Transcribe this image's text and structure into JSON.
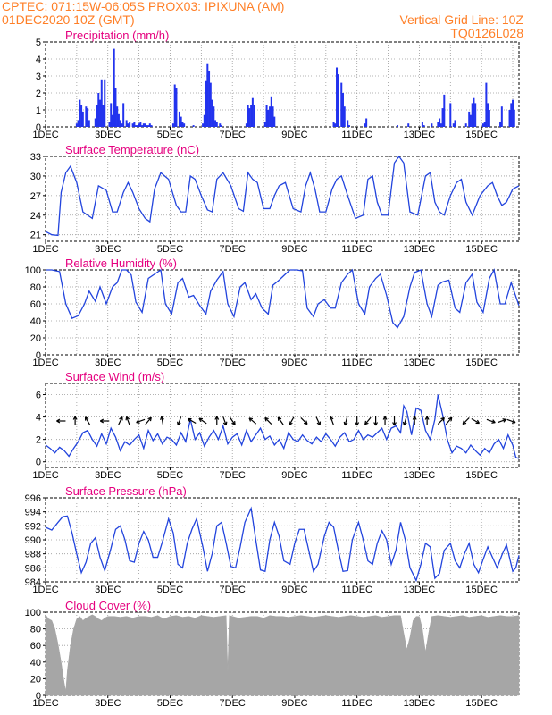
{
  "header": {
    "line1_left": "CPTEC:   071:15W-06:05S   PROX03: IPIXUNA (AM)",
    "line2_left": "01DEC2020 10Z (GMT)",
    "line2_right": "Vertical Grid Line: 10Z",
    "line3_right": "TQ0126L028"
  },
  "colors": {
    "header": "#ff7f27",
    "title": "#e5007f",
    "line": "#2244dd",
    "bar": "#2233ee",
    "cloud": "#a6a6a6",
    "arrow": "#000000"
  },
  "x_tick_labels": [
    "1DEC",
    "3DEC",
    "5DEC",
    "7DEC",
    "9DEC",
    "11DEC",
    "13DEC",
    "15DEC"
  ],
  "chart_data": [
    {
      "type": "bar",
      "title": "Precipitation (mm/h)",
      "x_unit": "days since 01DEC2020 10Z",
      "xlim": [
        0,
        15.2
      ],
      "ylim": [
        0,
        5
      ],
      "y_ticks": [
        0,
        1,
        2,
        3,
        4,
        5
      ],
      "x": [
        1.0,
        1.05,
        1.1,
        1.15,
        1.2,
        1.3,
        1.35,
        1.4,
        1.6,
        1.65,
        1.7,
        1.75,
        1.8,
        1.85,
        1.9,
        2.05,
        2.1,
        2.15,
        2.2,
        2.25,
        2.3,
        2.35,
        2.4,
        2.45,
        2.5,
        2.6,
        2.65,
        2.7,
        2.8,
        2.85,
        2.9,
        2.95,
        3.0,
        3.05,
        3.1,
        3.15,
        3.2,
        3.25,
        3.3,
        3.35,
        3.4,
        4.1,
        4.15,
        4.2,
        4.3,
        4.35,
        4.4,
        4.45,
        4.75,
        5.05,
        5.1,
        5.15,
        5.2,
        5.25,
        5.3,
        5.35,
        5.4,
        5.45,
        5.5,
        5.6,
        5.65,
        6.45,
        6.5,
        6.55,
        6.6,
        6.65,
        6.7,
        7.05,
        7.1,
        7.15,
        7.2,
        7.25,
        7.3,
        7.35,
        9.25,
        9.3,
        9.35,
        9.4,
        9.5,
        9.55,
        9.6,
        9.7,
        9.75,
        10.25,
        10.3,
        11.3,
        11.65,
        12.1,
        12.15,
        12.4,
        12.6,
        12.65,
        12.7,
        12.75,
        12.8,
        13.0,
        13.1,
        13.15,
        13.5,
        13.6,
        13.65,
        13.7,
        13.75,
        13.8,
        14.05,
        14.1,
        14.15,
        14.2,
        14.25,
        14.6,
        14.65,
        14.9,
        14.95,
        15.0,
        15.05
      ],
      "values": [
        0.2,
        0.4,
        1.6,
        1.3,
        0.9,
        1.2,
        1.1,
        0.4,
        0.5,
        1.3,
        2.0,
        1.6,
        2.8,
        1.3,
        2.8,
        0.3,
        1.4,
        0.7,
        4.6,
        2.3,
        1.2,
        0.8,
        0.4,
        0.2,
        1.4,
        0.4,
        0.2,
        0.3,
        0.2,
        0.3,
        0.1,
        0.1,
        0.2,
        0.3,
        0.1,
        0.2,
        0.2,
        0.1,
        0.1,
        0.2,
        0.1,
        0.2,
        2.5,
        2.3,
        0.9,
        0.6,
        0.3,
        0.2,
        0.1,
        0.2,
        0.7,
        2.7,
        3.7,
        3.3,
        2.6,
        1.6,
        1.2,
        0.4,
        0.3,
        0.2,
        0.1,
        0.2,
        1.3,
        1.1,
        1.3,
        1.7,
        1.3,
        0.3,
        1.3,
        1.0,
        1.2,
        1.8,
        1.2,
        0.6,
        0.3,
        0.2,
        3.5,
        3.1,
        2.6,
        2.0,
        1.2,
        0.4,
        0.1,
        0.2,
        0.5,
        0.1,
        0.2,
        0.3,
        0.1,
        0.2,
        0.3,
        0.5,
        0.2,
        1.1,
        1.9,
        1.4,
        0.2,
        0.4,
        0.2,
        0.9,
        0.7,
        1.4,
        1.7,
        1.4,
        0.2,
        0.3,
        2.6,
        1.4,
        1.0,
        0.3,
        1.2,
        1.0,
        1.4,
        1.6,
        1.0
      ]
    },
    {
      "type": "line",
      "title": "Surface Temperature (nC)",
      "x_unit": "days since 01DEC2020 10Z",
      "xlim": [
        0,
        15.2
      ],
      "ylim": [
        20,
        33
      ],
      "y_ticks": [
        21,
        24,
        27,
        30,
        33
      ],
      "x": [
        0,
        0.2,
        0.4,
        0.5,
        0.65,
        0.8,
        1.0,
        1.2,
        1.35,
        1.5,
        1.7,
        1.95,
        2.15,
        2.3,
        2.5,
        2.65,
        2.8,
        3.0,
        3.2,
        3.35,
        3.5,
        3.7,
        3.95,
        4.2,
        4.35,
        4.5,
        4.65,
        4.8,
        5.0,
        5.2,
        5.35,
        5.5,
        5.7,
        5.95,
        6.2,
        6.35,
        6.5,
        6.65,
        6.8,
        7.0,
        7.2,
        7.35,
        7.5,
        7.7,
        7.95,
        8.2,
        8.35,
        8.5,
        8.65,
        8.8,
        9.0,
        9.2,
        9.35,
        9.5,
        9.7,
        9.95,
        10.2,
        10.35,
        10.5,
        10.65,
        10.8,
        11.0,
        11.2,
        11.35,
        11.5,
        11.7,
        11.95,
        12.2,
        12.35,
        12.5,
        12.65,
        12.8,
        13.0,
        13.2,
        13.35,
        13.5,
        13.7,
        13.95,
        14.2,
        14.35,
        14.5,
        14.65,
        14.8,
        15.0,
        15.2
      ],
      "values": [
        21.5,
        21.0,
        20.9,
        27.5,
        30.5,
        31.5,
        29.0,
        24.5,
        24.0,
        23.5,
        28.5,
        27.8,
        24.5,
        24.5,
        27.5,
        29.0,
        27.5,
        25.0,
        23.5,
        23.0,
        28.0,
        30.5,
        29.5,
        25.5,
        24.5,
        24.5,
        30.0,
        29.5,
        27.0,
        24.8,
        24.5,
        29.5,
        30.5,
        28.5,
        25.0,
        24.6,
        30.5,
        29.5,
        29.0,
        25.0,
        25.0,
        27.0,
        28.5,
        29.0,
        25.0,
        24.5,
        28.5,
        30.5,
        28.0,
        24.5,
        24.5,
        28.0,
        29.5,
        30.0,
        27.0,
        23.5,
        24.0,
        29.5,
        30.0,
        26.0,
        24.0,
        24.0,
        32.0,
        33.0,
        32.0,
        24.5,
        24.0,
        30.0,
        30.5,
        26.0,
        24.5,
        24.0,
        27.0,
        29.0,
        29.5,
        26.0,
        24.0,
        27.0,
        28.5,
        29.0,
        27.0,
        25.5,
        26.0,
        28.0,
        28.5
      ]
    },
    {
      "type": "line",
      "title": "Relative Humidity (%)",
      "x_unit": "days since 01DEC2020 10Z",
      "xlim": [
        0,
        15.2
      ],
      "ylim": [
        0,
        100
      ],
      "y_ticks": [
        0,
        20,
        40,
        60,
        80,
        100
      ],
      "x": [
        0,
        0.2,
        0.45,
        0.65,
        0.85,
        1.05,
        1.25,
        1.4,
        1.6,
        1.75,
        1.95,
        2.15,
        2.3,
        2.45,
        2.6,
        2.75,
        2.9,
        3.1,
        3.3,
        3.5,
        3.7,
        3.85,
        4.05,
        4.25,
        4.4,
        4.6,
        4.75,
        4.95,
        5.15,
        5.3,
        5.5,
        5.7,
        5.85,
        6.05,
        6.25,
        6.4,
        6.6,
        6.75,
        6.95,
        7.15,
        7.3,
        7.5,
        7.7,
        7.85,
        8.05,
        8.25,
        8.4,
        8.6,
        8.75,
        8.95,
        9.15,
        9.3,
        9.5,
        9.7,
        9.85,
        10.05,
        10.25,
        10.4,
        10.6,
        10.75,
        10.95,
        11.15,
        11.3,
        11.5,
        11.7,
        11.85,
        12.05,
        12.25,
        12.4,
        12.6,
        12.75,
        12.95,
        13.15,
        13.3,
        13.5,
        13.7,
        13.85,
        14.05,
        14.25,
        14.4,
        14.6,
        14.75,
        14.95,
        15.2
      ],
      "values": [
        100,
        100,
        98,
        60,
        43,
        46,
        60,
        75,
        63,
        80,
        60,
        80,
        85,
        100,
        100,
        94,
        62,
        50,
        90,
        95,
        100,
        60,
        48,
        85,
        90,
        68,
        70,
        58,
        48,
        75,
        88,
        98,
        60,
        45,
        80,
        85,
        65,
        72,
        55,
        48,
        82,
        88,
        95,
        100,
        100,
        99,
        55,
        45,
        60,
        65,
        55,
        55,
        85,
        95,
        100,
        60,
        48,
        80,
        90,
        95,
        70,
        38,
        32,
        45,
        80,
        97,
        100,
        60,
        45,
        82,
        86,
        88,
        55,
        50,
        85,
        95,
        62,
        50,
        90,
        100,
        60,
        60,
        85,
        58
      ]
    },
    {
      "type": "line",
      "title": "Surface Wind (m/s)",
      "x_unit": "days since 01DEC2020 10Z",
      "xlim": [
        0,
        15.2
      ],
      "ylim": [
        -0.5,
        7
      ],
      "y_ticks": [
        0,
        2,
        4,
        6
      ],
      "x": [
        0,
        0.15,
        0.3,
        0.45,
        0.6,
        0.75,
        0.9,
        1.05,
        1.2,
        1.35,
        1.5,
        1.65,
        1.8,
        1.95,
        2.1,
        2.25,
        2.4,
        2.55,
        2.7,
        2.85,
        3.0,
        3.15,
        3.3,
        3.45,
        3.6,
        3.75,
        3.9,
        4.05,
        4.2,
        4.35,
        4.5,
        4.65,
        4.8,
        4.95,
        5.1,
        5.25,
        5.4,
        5.55,
        5.7,
        5.85,
        6.0,
        6.15,
        6.3,
        6.45,
        6.6,
        6.75,
        6.9,
        7.05,
        7.2,
        7.35,
        7.5,
        7.65,
        7.8,
        7.95,
        8.1,
        8.25,
        8.4,
        8.55,
        8.7,
        8.85,
        9.0,
        9.15,
        9.3,
        9.45,
        9.6,
        9.75,
        9.9,
        10.05,
        10.2,
        10.35,
        10.5,
        10.65,
        10.8,
        10.95,
        11.1,
        11.25,
        11.4,
        11.5,
        11.6,
        11.75,
        11.9,
        12.05,
        12.2,
        12.35,
        12.5,
        12.6,
        12.75,
        12.9,
        13.05,
        13.2,
        13.35,
        13.5,
        13.65,
        13.8,
        13.95,
        14.1,
        14.25,
        14.4,
        14.55,
        14.7,
        14.85,
        15.0,
        15.1,
        15.2
      ],
      "values": [
        1.5,
        1.2,
        0.8,
        1.3,
        1.0,
        0.5,
        1.2,
        1.8,
        2.6,
        2.8,
        2.0,
        1.4,
        2.5,
        1.6,
        3.0,
        2.2,
        1.0,
        1.8,
        1.5,
        2.0,
        2.4,
        1.2,
        2.8,
        1.9,
        2.5,
        1.6,
        2.2,
        2.0,
        1.5,
        2.6,
        1.8,
        3.8,
        2.0,
        2.6,
        1.4,
        2.2,
        2.8,
        2.0,
        3.2,
        1.6,
        2.2,
        2.5,
        1.5,
        2.8,
        1.8,
        2.4,
        3.0,
        2.0,
        2.3,
        1.5,
        2.0,
        1.2,
        2.6,
        2.0,
        1.8,
        2.4,
        1.9,
        1.6,
        2.2,
        1.8,
        2.5,
        2.0,
        1.4,
        2.2,
        2.6,
        1.8,
        2.0,
        2.8,
        2.0,
        2.4,
        2.2,
        2.6,
        3.0,
        2.0,
        3.0,
        3.2,
        2.6,
        5.0,
        4.5,
        2.4,
        4.8,
        4.6,
        2.8,
        2.0,
        3.8,
        6.0,
        4.2,
        2.0,
        0.8,
        1.4,
        1.2,
        0.8,
        1.5,
        1.0,
        0.6,
        1.2,
        0.8,
        1.6,
        2.0,
        1.2,
        2.4,
        1.5,
        0.4,
        0.3
      ],
      "wind_arrows": {
        "x": [
          0.5,
          0.95,
          1.35,
          1.9,
          2.4,
          2.65,
          3.05,
          3.3,
          3.75,
          4.3,
          4.7,
          5.05,
          5.5,
          5.75,
          6.0,
          6.65,
          7.15,
          7.55,
          7.9,
          8.3,
          8.75,
          9.2,
          9.65,
          10.0,
          10.35,
          10.6,
          10.9,
          11.2,
          11.55,
          11.85,
          12.25,
          12.7,
          12.95,
          13.5,
          13.8,
          14.3,
          14.65,
          14.95
        ],
        "dir_deg": [
          270,
          0,
          330,
          270,
          25,
          340,
          250,
          40,
          350,
          200,
          300,
          305,
          0,
          160,
          145,
          310,
          315,
          325,
          210,
          135,
          155,
          340,
          195,
          180,
          220,
          180,
          0,
          180,
          195,
          0,
          0,
          45,
          40,
          225,
          120,
          110,
          70,
          110
        ]
      }
    },
    {
      "type": "line",
      "title": "Surface Pressure (hPa)",
      "x_unit": "days since 01DEC2020 10Z",
      "xlim": [
        0,
        15.2
      ],
      "ylim": [
        984,
        996
      ],
      "y_ticks": [
        984,
        986,
        988,
        990,
        992,
        994,
        996
      ],
      "x": [
        0,
        0.2,
        0.4,
        0.55,
        0.7,
        0.85,
        1.0,
        1.15,
        1.3,
        1.45,
        1.6,
        1.75,
        1.9,
        2.1,
        2.25,
        2.4,
        2.55,
        2.7,
        2.85,
        3.0,
        3.15,
        3.3,
        3.45,
        3.6,
        3.75,
        3.95,
        4.1,
        4.25,
        4.4,
        4.55,
        4.7,
        4.85,
        5.05,
        5.2,
        5.35,
        5.5,
        5.65,
        5.8,
        5.95,
        6.1,
        6.25,
        6.4,
        6.6,
        6.75,
        6.9,
        7.05,
        7.2,
        7.35,
        7.5,
        7.65,
        7.85,
        8.0,
        8.15,
        8.3,
        8.45,
        8.6,
        8.75,
        8.95,
        9.1,
        9.25,
        9.4,
        9.55,
        9.7,
        9.85,
        10.05,
        10.2,
        10.35,
        10.5,
        10.65,
        10.8,
        10.95,
        11.1,
        11.25,
        11.4,
        11.55,
        11.7,
        11.9,
        12.05,
        12.2,
        12.35,
        12.5,
        12.65,
        12.8,
        13.0,
        13.15,
        13.3,
        13.45,
        13.6,
        13.75,
        13.9,
        14.05,
        14.2,
        14.35,
        14.5,
        14.65,
        14.8,
        15.0,
        15.1,
        15.2
      ],
      "values": [
        991.8,
        991.4,
        992.5,
        993.3,
        993.4,
        991.0,
        988.0,
        985.3,
        986.8,
        989.5,
        990.3,
        987.5,
        985.6,
        988.8,
        991.5,
        992.0,
        990.0,
        987.0,
        986.8,
        989.5,
        991.2,
        990.0,
        987.5,
        987.5,
        989.7,
        993.0,
        991.0,
        986.5,
        986.0,
        989.5,
        991.5,
        993.0,
        989.0,
        985.5,
        988.0,
        992.0,
        992.5,
        989.5,
        986.2,
        986.0,
        989.0,
        992.5,
        994.5,
        990.0,
        985.7,
        985.5,
        990.0,
        992.5,
        990.5,
        987.0,
        986.5,
        989.5,
        991.5,
        991.5,
        988.5,
        985.5,
        986.5,
        990.5,
        992.5,
        991.8,
        988.5,
        985.5,
        985.6,
        990.0,
        992.5,
        990.0,
        987.0,
        986.5,
        989.5,
        991.3,
        990.0,
        986.5,
        988.5,
        992.5,
        990.0,
        986.0,
        984.2,
        986.5,
        989.5,
        989.0,
        984.5,
        985.2,
        988.5,
        989.5,
        987.0,
        986.0,
        988.0,
        989.5,
        986.5,
        985.3,
        987.2,
        989.0,
        987.5,
        986.0,
        987.8,
        989.3,
        985.5,
        986.0,
        987.8
      ]
    },
    {
      "type": "area",
      "title": "Cloud Cover (%)",
      "x_unit": "days since 01DEC2020 10Z",
      "xlim": [
        0,
        15.2
      ],
      "ylim": [
        0,
        100
      ],
      "y_ticks": [
        0,
        20,
        40,
        60,
        80,
        100
      ],
      "x": [
        0,
        0.1,
        0.2,
        0.3,
        0.4,
        0.5,
        0.6,
        0.65,
        0.7,
        0.8,
        0.9,
        1.0,
        1.1,
        1.2,
        1.3,
        1.4,
        1.5,
        1.6,
        1.7,
        1.8,
        1.9,
        2.0,
        2.2,
        2.4,
        2.6,
        2.8,
        3.0,
        3.2,
        3.4,
        3.6,
        3.8,
        4.0,
        4.2,
        4.4,
        4.6,
        4.8,
        5.0,
        5.2,
        5.4,
        5.6,
        5.8,
        5.85,
        5.9,
        6.0,
        6.2,
        6.4,
        6.6,
        6.8,
        7.0,
        7.2,
        7.4,
        7.6,
        7.8,
        8.0,
        8.2,
        8.4,
        8.6,
        8.8,
        9.0,
        9.2,
        9.4,
        9.6,
        9.8,
        10.0,
        10.2,
        10.4,
        10.6,
        10.8,
        11.0,
        11.2,
        11.4,
        11.5,
        11.6,
        11.7,
        11.8,
        11.9,
        12.0,
        12.1,
        12.2,
        12.3,
        12.4,
        12.6,
        12.8,
        13.0,
        13.2,
        13.4,
        13.6,
        13.8,
        14.0,
        14.2,
        14.4,
        14.6,
        14.8,
        15.0,
        15.2
      ],
      "values": [
        97,
        92,
        90,
        80,
        62,
        40,
        15,
        5,
        30,
        60,
        80,
        92,
        95,
        90,
        93,
        95,
        97,
        95,
        92,
        90,
        93,
        95,
        95,
        94,
        95,
        93,
        95,
        95,
        94,
        96,
        92,
        95,
        96,
        94,
        95,
        93,
        96,
        95,
        94,
        95,
        96,
        28,
        96,
        95,
        93,
        94,
        95,
        95,
        93,
        96,
        95,
        95,
        94,
        95,
        96,
        95,
        94,
        95,
        96,
        95,
        94,
        95,
        96,
        95,
        94,
        95,
        96,
        94,
        95,
        96,
        96,
        75,
        55,
        70,
        90,
        95,
        95,
        80,
        52,
        75,
        95,
        96,
        95,
        94,
        95,
        96,
        94,
        95,
        96,
        94,
        95,
        96,
        95,
        95,
        96
      ]
    }
  ]
}
